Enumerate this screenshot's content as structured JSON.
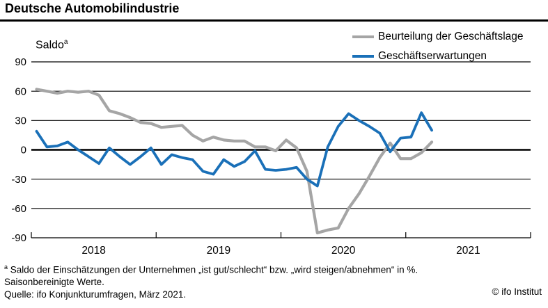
{
  "header": {
    "title": "Deutsche Automobilindustrie"
  },
  "labels": {
    "saldo": "Saldo",
    "saldo_sup": "a"
  },
  "chart_data": {
    "type": "line",
    "title": "Deutsche Automobilindustrie",
    "ylabel": "Saldo",
    "ylim": [
      -90,
      90
    ],
    "y_ticks": [
      90,
      60,
      30,
      0,
      -30,
      -60,
      -90
    ],
    "x_year_labels": [
      "2018",
      "2019",
      "2020",
      "2021"
    ],
    "x_axis_span": [
      "2018-01",
      "2022-01"
    ],
    "start_month": "2018-01",
    "end_month": "2021-03",
    "frequency": "monthly",
    "grid": "horizontal black lines every 30, bold zero line",
    "legend_position": "top-right",
    "series": [
      {
        "name": "Beurteilung der Geschäftslage",
        "color": "#a5a5a5",
        "values": [
          62,
          60,
          58,
          60,
          59,
          60,
          56,
          40,
          37,
          33,
          28,
          27,
          23,
          24,
          25,
          15,
          9,
          13,
          10,
          9,
          9,
          3,
          3,
          -1,
          10,
          2,
          -22,
          -85,
          -82,
          -80,
          -60,
          -45,
          -27,
          -8,
          7,
          -9,
          -9,
          -3,
          8
        ]
      },
      {
        "name": "Geschäftserwartungen",
        "color": "#1a70b8",
        "values": [
          19,
          3,
          4,
          8,
          0,
          -7,
          -14,
          2,
          -7,
          -15,
          -7,
          2,
          -15,
          -5,
          -8,
          -10,
          -22,
          -25,
          -10,
          -17,
          -12,
          -1,
          -20,
          -21,
          -20,
          -18,
          -30,
          -37,
          3,
          24,
          37,
          30,
          24,
          17,
          -2,
          12,
          13,
          38,
          20
        ]
      }
    ]
  },
  "footnotes": {
    "sup": "a",
    "line1": " Saldo der Einschätzungen der Unternehmen „ist gut/schlecht“ bzw. „wird steigen/abnehmen“ in %.",
    "line2": "Saisonbereinigte Werte.",
    "line3": "Quelle: ifo Konjunkturumfragen, März 2021."
  },
  "copyright": "© ifo Institut"
}
